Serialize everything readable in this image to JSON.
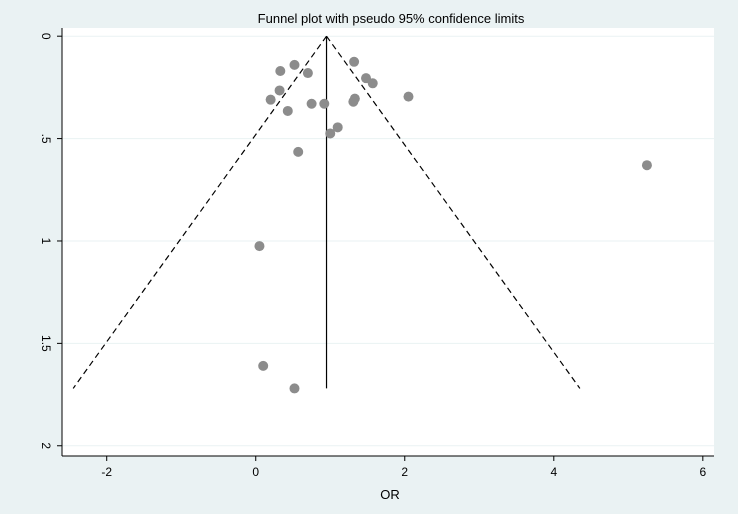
{
  "chart_data": {
    "type": "scatter",
    "title": "Funnel plot with pseudo 95% confidence limits",
    "xlabel": "OR",
    "ylabel": "",
    "xlim": [
      -2.6,
      6.15
    ],
    "ylim": [
      2.05,
      -0.04
    ],
    "y_reversed": true,
    "xticks": [
      -2,
      0,
      2,
      4,
      6
    ],
    "xtick_labels": [
      "-2",
      "0",
      "2",
      "4",
      "6"
    ],
    "yticks": [
      0,
      0.5,
      1,
      1.5,
      2
    ],
    "ytick_labels": [
      "0",
      ".5",
      "1",
      "1.5",
      "2"
    ],
    "grid": "horizontal",
    "legend": "none",
    "colors": {
      "background": "#eaf2f3",
      "plot_area": "#ffffff",
      "grid": "#eaf2f3",
      "points": "#8c8c8c",
      "lines": "#000000"
    },
    "pooled_or": 0.95,
    "funnel": {
      "apex": [
        0.95,
        0
      ],
      "left_end": [
        -2.45,
        1.72
      ],
      "right_end": [
        4.35,
        1.72
      ]
    },
    "points": [
      {
        "x": 0.52,
        "y": 0.14
      },
      {
        "x": 0.33,
        "y": 0.17
      },
      {
        "x": 0.7,
        "y": 0.18
      },
      {
        "x": 1.32,
        "y": 0.125
      },
      {
        "x": 1.48,
        "y": 0.205
      },
      {
        "x": 1.57,
        "y": 0.23
      },
      {
        "x": 0.32,
        "y": 0.265
      },
      {
        "x": 0.2,
        "y": 0.31
      },
      {
        "x": 2.05,
        "y": 0.295
      },
      {
        "x": 1.33,
        "y": 0.305
      },
      {
        "x": 1.31,
        "y": 0.32
      },
      {
        "x": 0.75,
        "y": 0.33
      },
      {
        "x": 0.92,
        "y": 0.33
      },
      {
        "x": 0.43,
        "y": 0.365
      },
      {
        "x": 1.1,
        "y": 0.445
      },
      {
        "x": 1.0,
        "y": 0.475
      },
      {
        "x": 0.57,
        "y": 0.565
      },
      {
        "x": 5.25,
        "y": 0.63
      },
      {
        "x": 0.05,
        "y": 1.025
      },
      {
        "x": 0.1,
        "y": 1.61
      },
      {
        "x": 0.52,
        "y": 1.72
      }
    ]
  }
}
